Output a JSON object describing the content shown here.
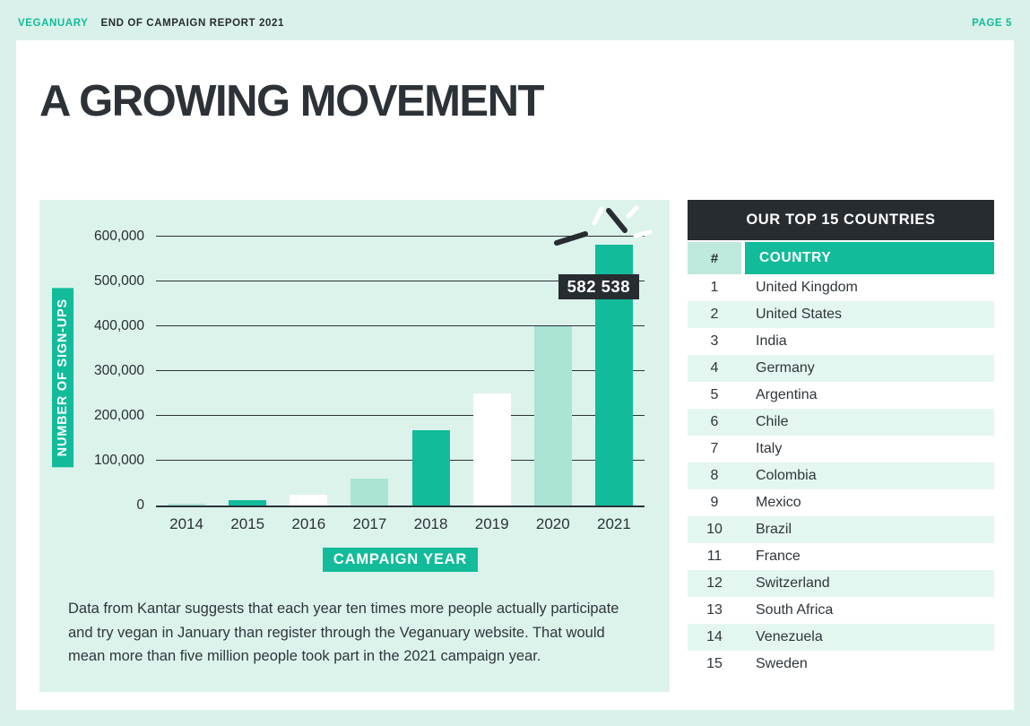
{
  "page": {
    "brand": "VEGANUARY",
    "report_title": "END OF CAMPAIGN REPORT 2021",
    "page_label": "PAGE 5",
    "title": "A GROWING MOVEMENT"
  },
  "chart_data": {
    "type": "bar",
    "title": "",
    "xlabel": "CAMPAIGN YEAR",
    "ylabel": "NUMBER OF SIGN-UPS",
    "categories": [
      "2014",
      "2015",
      "2016",
      "2017",
      "2018",
      "2019",
      "2020",
      "2021"
    ],
    "values": [
      3300,
      12800,
      23000,
      59500,
      168500,
      250000,
      400000,
      582538
    ],
    "bar_styles": [
      "light",
      "teal",
      "white",
      "light",
      "teal",
      "white",
      "light",
      "teal"
    ],
    "ylim": [
      0,
      600000
    ],
    "ytick_step": 100000,
    "ytick_labels": [
      "0",
      "100,000",
      "200,000",
      "300,000",
      "400,000",
      "500,000",
      "600,000"
    ],
    "grid": true,
    "annotation": {
      "category": "2021",
      "value_label": "582 538"
    }
  },
  "caption": "Data from Kantar suggests that each year ten times more people actually participate and try vegan in January than register through the Veganuary website. That would mean more than five million people took part in the 2021 campaign year.",
  "table": {
    "title": "OUR TOP 15 COUNTRIES",
    "columns": [
      "#",
      "COUNTRY"
    ],
    "rows": [
      [
        "1",
        "United Kingdom"
      ],
      [
        "2",
        "United States"
      ],
      [
        "3",
        "India"
      ],
      [
        "4",
        "Germany"
      ],
      [
        "5",
        "Argentina"
      ],
      [
        "6",
        "Chile"
      ],
      [
        "7",
        "Italy"
      ],
      [
        "8",
        "Colombia"
      ],
      [
        "9",
        "Mexico"
      ],
      [
        "10",
        "Brazil"
      ],
      [
        "11",
        "France"
      ],
      [
        "12",
        "Switzerland"
      ],
      [
        "13",
        "South Africa"
      ],
      [
        "14",
        "Venezuela"
      ],
      [
        "15",
        "Sweden"
      ]
    ]
  },
  "colors": {
    "teal": "#12BB99",
    "light_teal": "#A9E4D4",
    "dark": "#272C31",
    "mint_background": "#D9F1EA",
    "panel_background": "#DCF3EC",
    "row_alt_background": "#E4F6F0"
  }
}
